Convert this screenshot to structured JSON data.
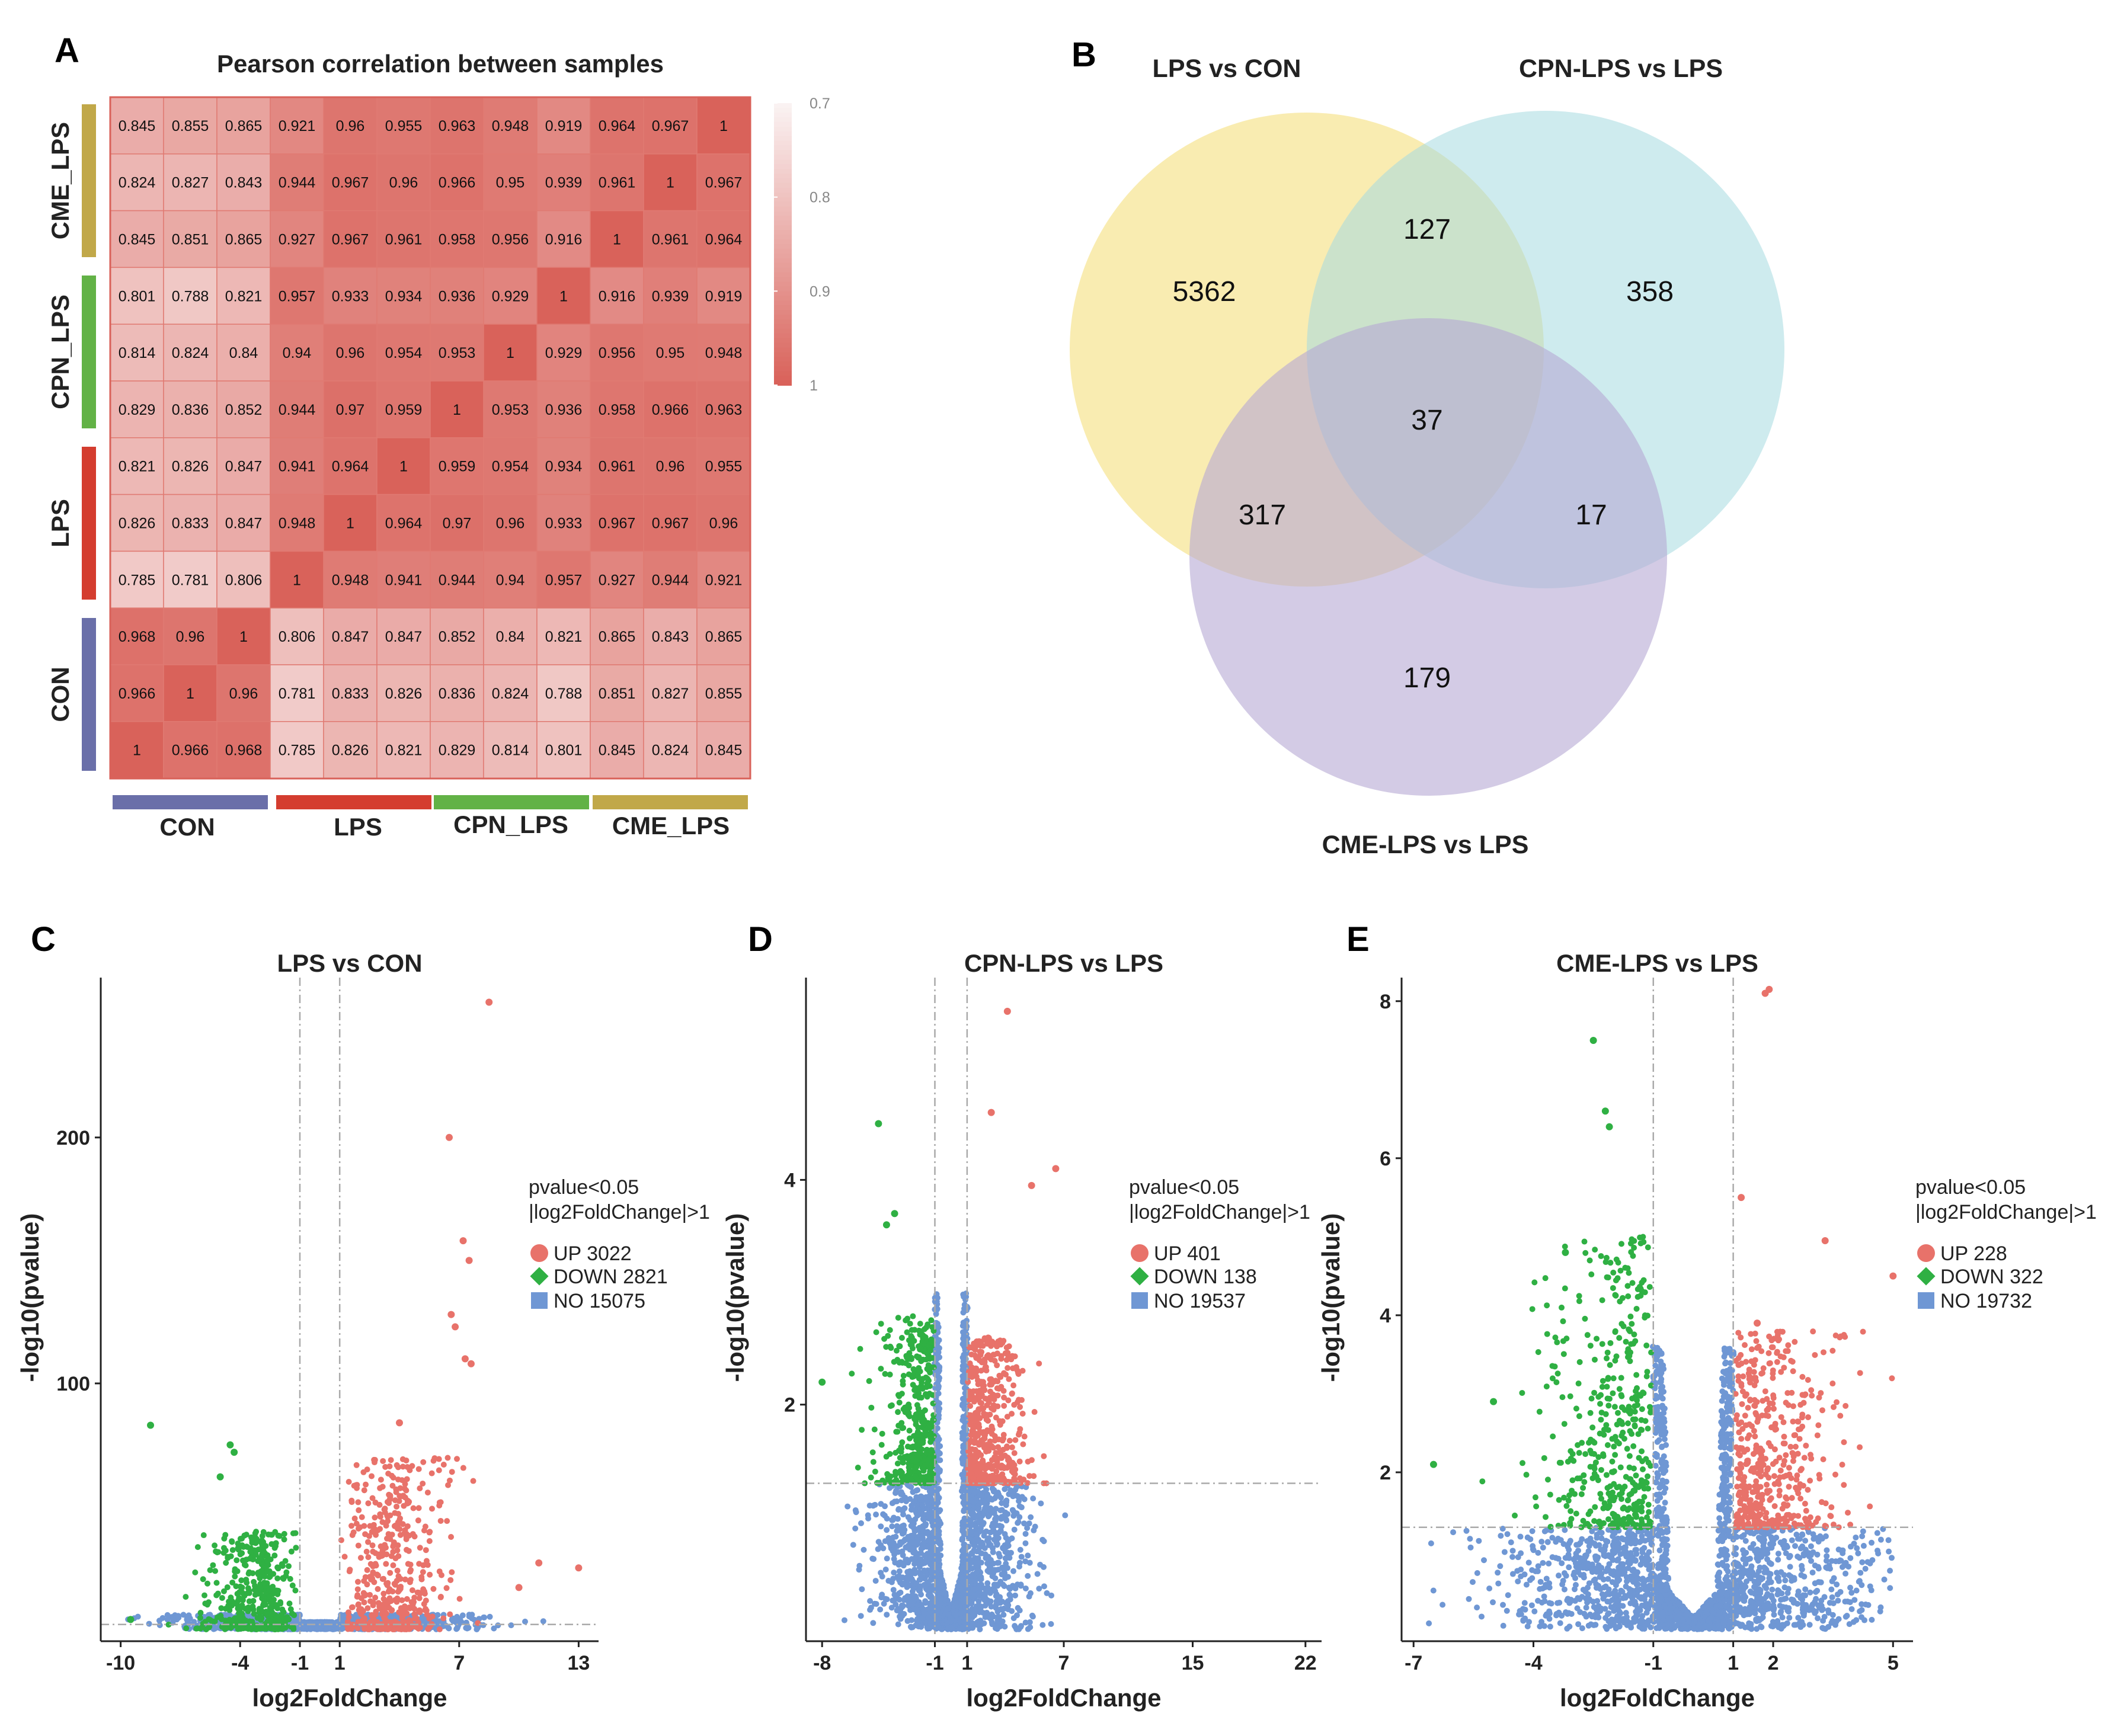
{
  "panels": {
    "A": "A",
    "B": "B",
    "C": "C",
    "D": "D",
    "E": "E"
  },
  "colors": {
    "up": "#e8726a",
    "down": "#2fb043",
    "no": "#6f97d4",
    "con": "#6a6fa9",
    "lps": "#d43d2f",
    "cpn": "#62b246",
    "cme": "#c1a849",
    "venn_lps": "#f5df7d",
    "venn_cpn": "#a5dbe0",
    "venn_cme": "#b6a9d4"
  },
  "heatmap": {
    "title": "Pearson correlation between samples",
    "colorbar_ticks": [
      "0.7",
      "0.8",
      "0.9",
      "1"
    ],
    "groups": [
      "CON",
      "LPS",
      "CPN_LPS",
      "CME_LPS"
    ],
    "row_groups_top_to_bottom": [
      "CME_LPS",
      "CPN_LPS",
      "LPS",
      "CON"
    ],
    "rows": [
      [
        "0.845",
        "0.855",
        "0.865",
        "0.921",
        "0.96",
        "0.955",
        "0.963",
        "0.948",
        "0.919",
        "0.964",
        "0.967",
        "1"
      ],
      [
        "0.824",
        "0.827",
        "0.843",
        "0.944",
        "0.967",
        "0.96",
        "0.966",
        "0.95",
        "0.939",
        "0.961",
        "1",
        "0.967"
      ],
      [
        "0.845",
        "0.851",
        "0.865",
        "0.927",
        "0.967",
        "0.961",
        "0.958",
        "0.956",
        "0.916",
        "1",
        "0.961",
        "0.964"
      ],
      [
        "0.801",
        "0.788",
        "0.821",
        "0.957",
        "0.933",
        "0.934",
        "0.936",
        "0.929",
        "1",
        "0.916",
        "0.939",
        "0.919"
      ],
      [
        "0.814",
        "0.824",
        "0.84",
        "0.94",
        "0.96",
        "0.954",
        "0.953",
        "1",
        "0.929",
        "0.956",
        "0.95",
        "0.948"
      ],
      [
        "0.829",
        "0.836",
        "0.852",
        "0.944",
        "0.97",
        "0.959",
        "1",
        "0.953",
        "0.936",
        "0.958",
        "0.966",
        "0.963"
      ],
      [
        "0.821",
        "0.826",
        "0.847",
        "0.941",
        "0.964",
        "1",
        "0.959",
        "0.954",
        "0.934",
        "0.961",
        "0.96",
        "0.955"
      ],
      [
        "0.826",
        "0.833",
        "0.847",
        "0.948",
        "1",
        "0.964",
        "0.97",
        "0.96",
        "0.933",
        "0.967",
        "0.967",
        "0.96"
      ],
      [
        "0.785",
        "0.781",
        "0.806",
        "1",
        "0.948",
        "0.941",
        "0.944",
        "0.94",
        "0.957",
        "0.927",
        "0.944",
        "0.921"
      ],
      [
        "0.968",
        "0.96",
        "1",
        "0.806",
        "0.847",
        "0.847",
        "0.852",
        "0.84",
        "0.821",
        "0.865",
        "0.843",
        "0.865"
      ],
      [
        "0.966",
        "1",
        "0.96",
        "0.781",
        "0.833",
        "0.826",
        "0.836",
        "0.824",
        "0.788",
        "0.851",
        "0.827",
        "0.855"
      ],
      [
        "1",
        "0.966",
        "0.968",
        "0.785",
        "0.826",
        "0.821",
        "0.829",
        "0.814",
        "0.801",
        "0.845",
        "0.824",
        "0.845"
      ]
    ]
  },
  "venn": {
    "sets": [
      "LPS vs CON",
      "CPN-LPS vs LPS",
      "CME-LPS vs LPS"
    ],
    "regions": {
      "lps_only": "5362",
      "cpn_only": "358",
      "cme_only": "179",
      "lps_cpn": "127",
      "lps_cme": "317",
      "cpn_cme": "17",
      "all": "37"
    }
  },
  "volcano": {
    "C": {
      "title": "LPS vs CON",
      "xlabel": "log2FoldChange",
      "ylabel": "-log10(pvalue)",
      "xticks": [
        "-10",
        "-4",
        "-1",
        "1",
        "7",
        "13"
      ],
      "yticks": [
        "100",
        "200"
      ],
      "legend_title_1": "pvalue<0.05",
      "legend_title_2": "|log2FoldChange|>1",
      "up": "UP 3022",
      "down": "DOWN 2821",
      "no": "NO 15075"
    },
    "D": {
      "title": "CPN-LPS vs LPS",
      "xlabel": "log2FoldChange",
      "ylabel": "-log10(pvalue)",
      "xticks": [
        "-8",
        "-1",
        "1",
        "7",
        "15",
        "22"
      ],
      "yticks": [
        "2",
        "4"
      ],
      "legend_title_1": "pvalue<0.05",
      "legend_title_2": "|log2FoldChange|>1",
      "up": "UP 401",
      "down": "DOWN 138",
      "no": "NO 19537"
    },
    "E": {
      "title": "CME-LPS vs LPS",
      "xlabel": "log2FoldChange",
      "ylabel": "-log10(pvalue)",
      "xticks": [
        "-7",
        "-4",
        "-1",
        "1",
        "2",
        "5"
      ],
      "yticks": [
        "2",
        "4",
        "6",
        "8"
      ],
      "legend_title_1": "pvalue<0.05",
      "legend_title_2": "|log2FoldChange|>1",
      "up": "UP 228",
      "down": "DOWN 322",
      "no": "NO 19732"
    }
  },
  "chart_data": [
    {
      "type": "heatmap",
      "title": "Pearson correlation between samples",
      "row_labels": [
        "CME_LPS",
        "CPN_LPS",
        "LPS",
        "CON"
      ],
      "col_labels": [
        "CON",
        "LPS",
        "CPN_LPS",
        "CME_LPS"
      ],
      "color_range": [
        0.7,
        1
      ]
    },
    {
      "type": "venn",
      "sets": [
        "LPS vs CON",
        "CPN-LPS vs LPS",
        "CME-LPS vs LPS"
      ],
      "values": {
        "LPS only": 5362,
        "CPN only": 358,
        "CME only": 179,
        "LPS&CPN": 127,
        "LPS&CME": 317,
        "CPN&CME": 17,
        "all": 37
      }
    },
    {
      "type": "scatter",
      "title": "LPS vs CON",
      "xlim": [
        -11,
        14
      ],
      "ylim": [
        0,
        265
      ],
      "series": [
        {
          "name": "UP",
          "count": 3022,
          "points": [
            [
              8.5,
              255
            ],
            [
              6.5,
              200
            ],
            [
              7.2,
              158
            ],
            [
              7.5,
              150
            ],
            [
              6.6,
              128
            ],
            [
              6.8,
              123
            ],
            [
              7.3,
              110
            ],
            [
              7.6,
              108
            ],
            [
              4,
              84
            ],
            [
              11,
              27
            ],
            [
              13,
              25
            ],
            [
              10,
              17
            ]
          ]
        },
        {
          "name": "DOWN",
          "count": 2821,
          "points": [
            [
              -8.5,
              83
            ],
            [
              -4.5,
              75
            ],
            [
              -4.3,
              72
            ],
            [
              -5,
              62
            ],
            [
              -9.5,
              4
            ]
          ]
        }
      ]
    },
    {
      "type": "scatter",
      "title": "CPN-LPS vs LPS",
      "xlim": [
        -9,
        23
      ],
      "ylim": [
        0,
        5.8
      ],
      "series": [
        {
          "name": "UP",
          "count": 401,
          "points": [
            [
              3.5,
              5.5
            ],
            [
              2.5,
              4.6
            ],
            [
              6.5,
              4.1
            ],
            [
              5,
              3.95
            ]
          ]
        },
        {
          "name": "DOWN",
          "count": 138,
          "points": [
            [
              -4.5,
              4.5
            ],
            [
              -4,
              3.6
            ],
            [
              -3.5,
              3.7
            ],
            [
              -8,
              2.2
            ]
          ]
        }
      ]
    },
    {
      "type": "scatter",
      "title": "CME-LPS vs LPS",
      "xlim": [
        -7.3,
        5.5
      ],
      "ylim": [
        0,
        8.3
      ],
      "series": [
        {
          "name": "UP",
          "count": 228,
          "points": [
            [
              1.8,
              8.1
            ],
            [
              1.9,
              8.15
            ],
            [
              1.2,
              5.5
            ],
            [
              3.3,
              4.95
            ],
            [
              5,
              4.5
            ],
            [
              1.6,
              3.9
            ]
          ]
        },
        {
          "name": "DOWN",
          "count": 322,
          "points": [
            [
              -2.5,
              7.5
            ],
            [
              -2.2,
              6.6
            ],
            [
              -2.1,
              6.4
            ],
            [
              -3.2,
              4.8
            ],
            [
              -5,
              2.9
            ],
            [
              -6.5,
              2.1
            ]
          ]
        }
      ]
    }
  ]
}
